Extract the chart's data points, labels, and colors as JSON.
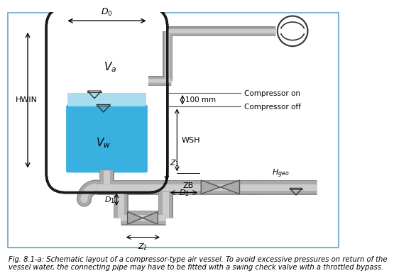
{
  "bg_color": "#ffffff",
  "caption": "Fig. 8.1-a: Schematic layout of a compressor-type air vessel. To avoid excessive pressures on return of the\nvessel water, the connecting pipe may have to be fitted with a swing check valve with a throttled bypass.",
  "caption_fontsize": 7.2,
  "pipe_gray_dark": "#888888",
  "pipe_gray_mid": "#aaaaaa",
  "pipe_gray_light": "#cccccc",
  "tank_edge": "#1a1a1a",
  "water_dark": "#3ab0e0",
  "water_light": "#a8ddf0",
  "text_blue": "#4a6fa5",
  "border_blue": "#7ab0d0"
}
